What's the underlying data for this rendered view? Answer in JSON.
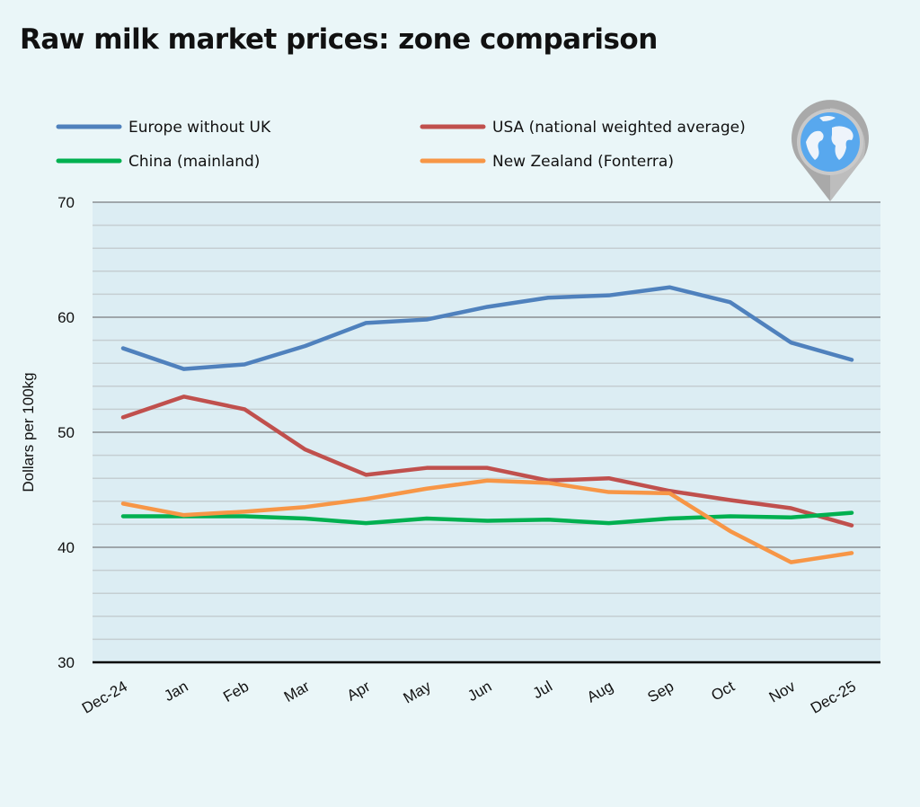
{
  "chart_data": {
    "type": "line",
    "title": "Raw milk market prices: zone comparison",
    "ylabel": "Dollars per 100kg",
    "xlabel": "",
    "ylim": [
      30,
      70
    ],
    "yticks": [
      30,
      40,
      50,
      60,
      70
    ],
    "minor_grid_step": 2,
    "grid": true,
    "legend_placement": "top",
    "categories": [
      "Dec-24",
      "Jan",
      "Feb",
      "Mar",
      "Apr",
      "May",
      "Jun",
      "Jul",
      "Aug",
      "Sep",
      "Oct",
      "Nov",
      "Dec-25"
    ],
    "series": [
      {
        "name": "Europe without UK",
        "color": "#4f81bd",
        "values": [
          57.3,
          55.5,
          55.9,
          57.5,
          59.5,
          59.8,
          60.9,
          61.7,
          61.9,
          62.6,
          61.3,
          57.8,
          56.3
        ]
      },
      {
        "name": "USA (national weighted average)",
        "color": "#c0504d",
        "values": [
          51.3,
          53.1,
          52.0,
          48.5,
          46.3,
          46.9,
          46.9,
          45.8,
          46.0,
          44.9,
          44.1,
          43.4,
          41.9
        ]
      },
      {
        "name": "China (mainland)",
        "color": "#00b050",
        "values": [
          42.7,
          42.7,
          42.7,
          42.5,
          42.1,
          42.5,
          42.3,
          42.4,
          42.1,
          42.5,
          42.7,
          42.6,
          43.0
        ]
      },
      {
        "name": "New Zealand (Fonterra)",
        "color": "#f79646",
        "values": [
          43.8,
          42.8,
          43.1,
          43.5,
          44.2,
          45.1,
          45.8,
          45.6,
          44.8,
          44.7,
          41.4,
          38.7,
          39.5
        ]
      }
    ]
  },
  "icon": "globe-map-pin-icon",
  "colors": {
    "background": "#eaf6f8",
    "plot_background": "#dcedf3"
  }
}
